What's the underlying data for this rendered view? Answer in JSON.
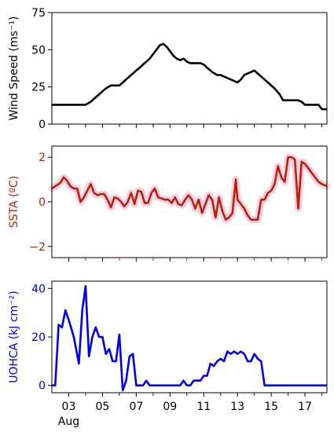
{
  "chart_data": [
    {
      "type": "line",
      "ylabel": "Wind Speed (ms⁻¹)",
      "ylim": [
        0,
        75
      ],
      "yticks": [
        0,
        25,
        50,
        75
      ],
      "color": "#000000",
      "x": [
        2.0,
        2.5,
        3.0,
        3.3,
        3.6,
        3.8,
        4.0,
        4.3,
        4.6,
        4.8,
        5.0,
        5.2,
        5.5,
        5.8,
        6.0,
        6.3,
        6.6,
        6.9,
        7.2,
        7.5,
        7.8,
        8.0,
        8.2,
        8.4,
        8.6,
        8.8,
        9.0,
        9.2,
        9.4,
        9.6,
        9.8,
        10.0,
        10.2,
        10.5,
        10.8,
        11.0,
        11.2,
        11.5,
        11.8,
        12.0,
        12.2,
        12.4,
        12.6,
        12.8,
        13.0,
        13.2,
        13.4,
        13.6,
        13.8,
        14.0,
        14.3,
        14.6,
        14.9,
        15.2,
        15.5,
        15.7,
        15.9,
        16.1,
        16.3,
        16.6,
        16.8,
        17.0,
        17.2,
        17.4,
        17.6,
        17.8,
        18.0,
        18.3
      ],
      "values": [
        13,
        13,
        13,
        13,
        13,
        13,
        13,
        15,
        18,
        20,
        22,
        24,
        26,
        26,
        26,
        29,
        32,
        35,
        38,
        41,
        44,
        47,
        50,
        53,
        54,
        52,
        49,
        46,
        44,
        43,
        44,
        42,
        41,
        41,
        41,
        40,
        38,
        35,
        33,
        33,
        32,
        31,
        30,
        29,
        28,
        30,
        33,
        34,
        35,
        36,
        33,
        30,
        27,
        24,
        20,
        16,
        16,
        16,
        16,
        16,
        15,
        13,
        13,
        13,
        13,
        13,
        10,
        10
      ],
      "xticks": []
    },
    {
      "type": "line",
      "ylabel": "SSTA (ºC)",
      "ylim": [
        -2.5,
        2.5
      ],
      "yticks": [
        -2,
        0,
        2
      ],
      "color": "#bb2200",
      "band_color": "#f7c8e6",
      "x": [
        2.0,
        2.2,
        2.5,
        2.7,
        2.9,
        3.1,
        3.3,
        3.5,
        3.7,
        3.9,
        4.1,
        4.3,
        4.5,
        4.7,
        4.9,
        5.1,
        5.3,
        5.5,
        5.7,
        5.9,
        6.1,
        6.3,
        6.5,
        6.7,
        6.9,
        7.1,
        7.3,
        7.5,
        7.7,
        7.9,
        8.1,
        8.3,
        8.5,
        8.7,
        8.9,
        9.1,
        9.3,
        9.5,
        9.7,
        9.9,
        10.1,
        10.3,
        10.5,
        10.7,
        10.9,
        11.1,
        11.3,
        11.5,
        11.7,
        11.9,
        12.1,
        12.3,
        12.5,
        12.7,
        12.9,
        13.0,
        13.2,
        13.4,
        13.6,
        13.8,
        14.0,
        14.2,
        14.4,
        14.6,
        14.8,
        15.0,
        15.2,
        15.4,
        15.6,
        15.8,
        16.0,
        16.2,
        16.4,
        16.6,
        16.8,
        17.0,
        17.2,
        17.4,
        17.6,
        17.8,
        18.0,
        18.3
      ],
      "values": [
        0.6,
        0.7,
        0.85,
        1.1,
        0.95,
        0.7,
        0.6,
        0.6,
        0.0,
        0.2,
        0.5,
        0.8,
        0.4,
        0.3,
        0.35,
        0.35,
        0.1,
        -0.25,
        0.2,
        0.15,
        0.0,
        -0.2,
        0.0,
        0.4,
        -0.1,
        0.5,
        0.45,
        -0.05,
        -0.05,
        0.4,
        0.6,
        0.2,
        0.15,
        0.1,
        0.1,
        -0.05,
        0.2,
        -0.1,
        -0.15,
        0.1,
        0.3,
        0.1,
        -0.3,
        0.1,
        -0.5,
        -0.1,
        0.3,
        0.1,
        -0.7,
        0.2,
        -0.4,
        -0.8,
        -0.7,
        -0.5,
        1.0,
        0.1,
        -0.1,
        -0.3,
        -0.6,
        -0.8,
        -0.8,
        -0.8,
        0.1,
        0.1,
        0.4,
        0.5,
        0.8,
        1.6,
        1.1,
        0.9,
        2.0,
        2.0,
        1.9,
        -0.3,
        1.8,
        1.7,
        1.5,
        1.3,
        1.1,
        0.9,
        0.8,
        0.7
      ],
      "xticks": []
    },
    {
      "type": "line",
      "ylabel": "UOHCA (kJ cm⁻²)",
      "ylim": [
        -3,
        43
      ],
      "yticks": [
        0,
        20,
        40
      ],
      "color": "#0000ee",
      "x": [
        2.0,
        2.2,
        2.4,
        2.6,
        2.8,
        3.0,
        3.3,
        3.6,
        3.8,
        4.0,
        4.2,
        4.4,
        4.6,
        4.8,
        5.0,
        5.2,
        5.4,
        5.6,
        5.8,
        6.0,
        6.2,
        6.4,
        6.6,
        6.8,
        7.0,
        7.2,
        7.4,
        7.6,
        7.8,
        8.0,
        8.4,
        8.8,
        9.0,
        9.2,
        9.4,
        9.6,
        9.8,
        10.0,
        10.2,
        10.4,
        10.6,
        10.8,
        11.0,
        11.2,
        11.4,
        11.6,
        11.8,
        12.0,
        12.2,
        12.4,
        12.6,
        12.8,
        13.0,
        13.2,
        13.4,
        13.6,
        13.8,
        14.0,
        14.2,
        14.4,
        14.6,
        14.8,
        15.0,
        15.2,
        15.4,
        15.6,
        15.8,
        16.0,
        16.2,
        16.5,
        17.0,
        17.5,
        18.0,
        18.3
      ],
      "values": [
        0,
        0,
        25,
        24,
        31,
        27,
        20,
        9,
        31,
        41,
        12,
        20,
        24,
        20,
        20,
        13,
        15,
        10,
        10,
        21,
        -2,
        2,
        12,
        13,
        0,
        0,
        0,
        2,
        0,
        0,
        0,
        0,
        0,
        0,
        0,
        0,
        2,
        0,
        0,
        2,
        2,
        2,
        4,
        4,
        9,
        8,
        10,
        11,
        10,
        14,
        13,
        14,
        13,
        14,
        13,
        10,
        10,
        13,
        11,
        10,
        0,
        0,
        0,
        0,
        0,
        0,
        0,
        0,
        0,
        0,
        0,
        0,
        0,
        0
      ],
      "xticks": [
        "03",
        "05",
        "07",
        "09",
        "11",
        "13",
        "15",
        "17"
      ],
      "xlabel_sub": "Aug"
    }
  ]
}
